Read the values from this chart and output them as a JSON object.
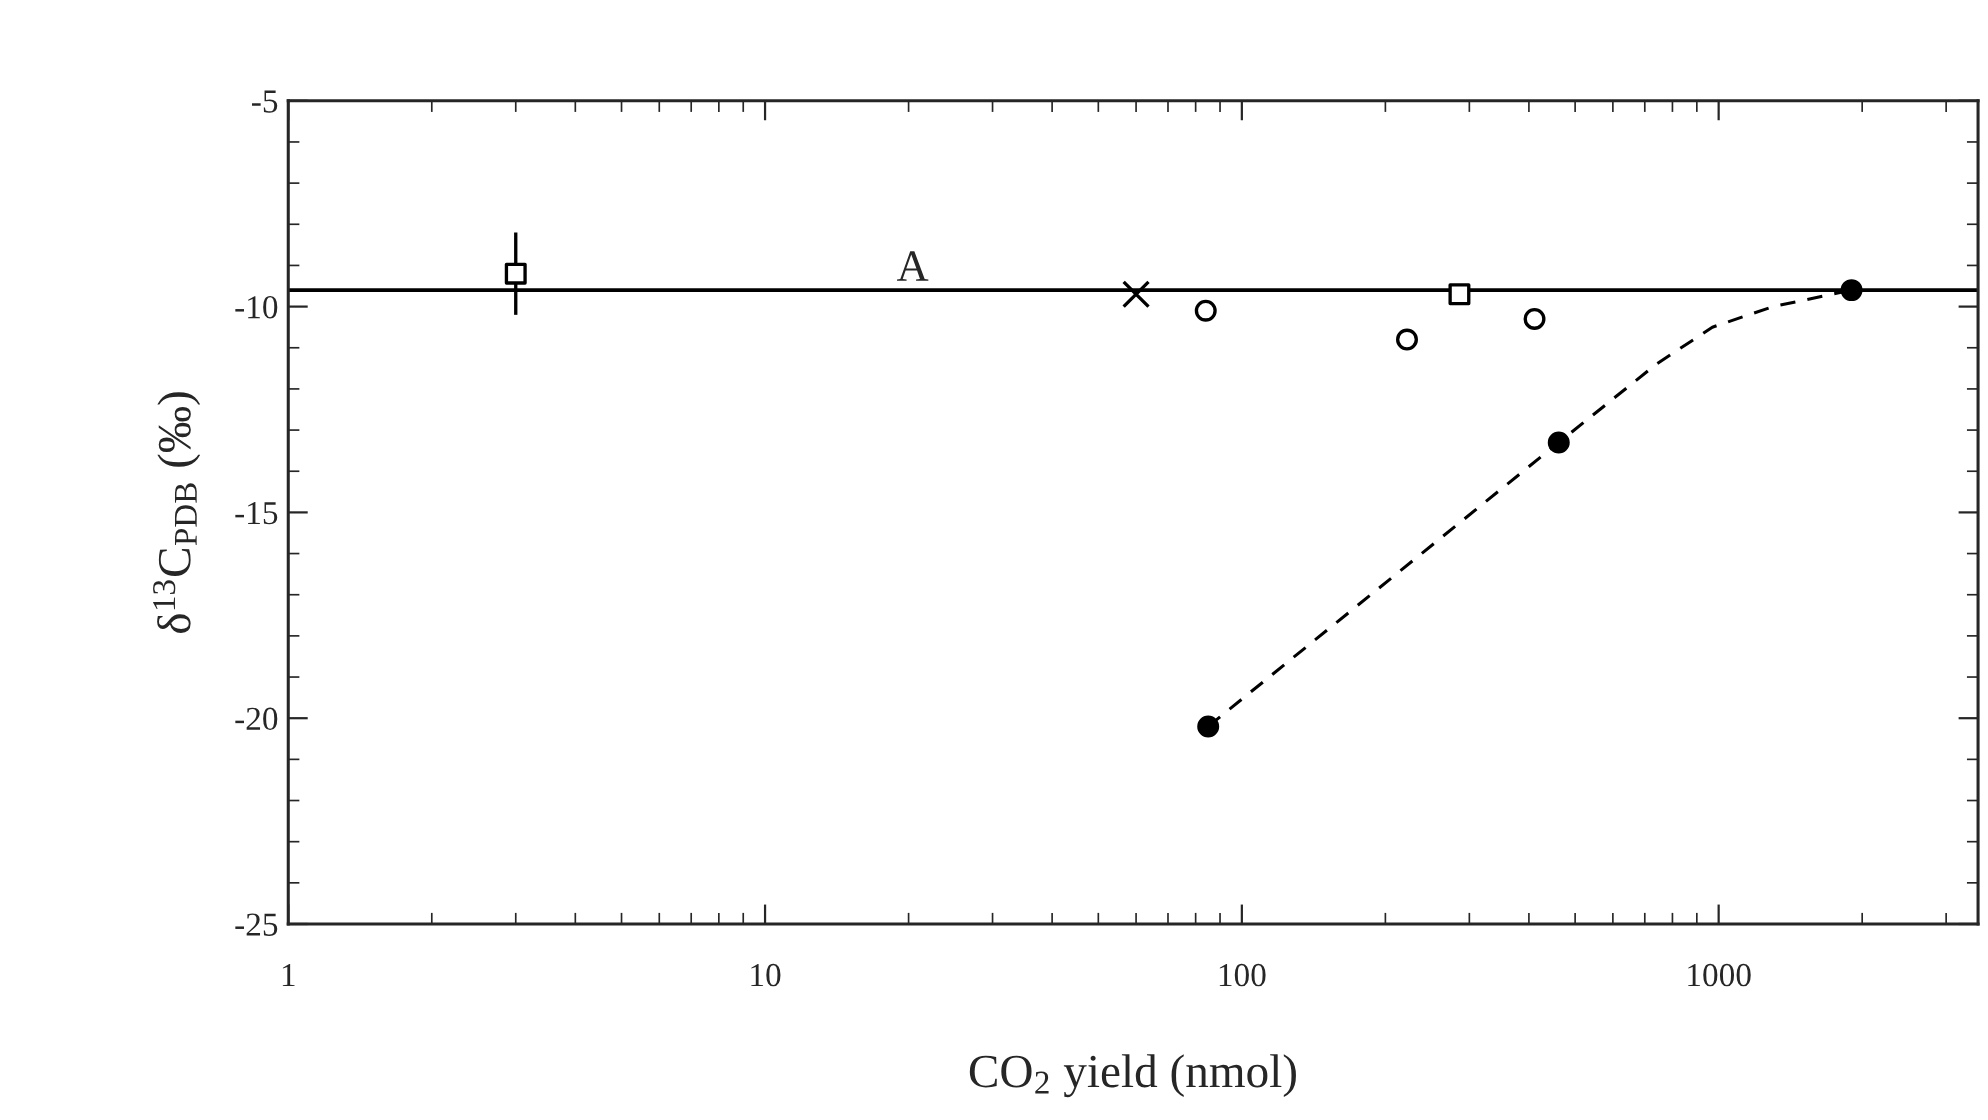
{
  "chart_data": {
    "type": "scatter",
    "xlabel": "CO$_{2}$ yield (nmol)",
    "ylabel": "δ$^{13}$C$_{PDB}$ (‰)",
    "log": "x",
    "xlim": [
      1,
      3500
    ],
    "xticks": [
      1,
      10,
      100,
      1000
    ],
    "ylim": [
      -25,
      -5
    ],
    "yticks": [
      -5,
      -10,
      -15,
      -20,
      -25
    ],
    "grid": false,
    "legend": false,
    "ref_lines": [
      {
        "axis": "y",
        "value": -9.6,
        "label": "A",
        "color": "#000000",
        "line_style": "solid"
      }
    ],
    "series": [
      {
        "marker": "square",
        "color": "#ffffff",
        "x": [
          3,
          286
        ],
        "values": [
          -9.2,
          -9.7
        ],
        "errors": [
          1.0,
          null
        ]
      },
      {
        "marker": "cross",
        "color": "#000000",
        "x": [
          60
        ],
        "values": [
          -9.7
        ]
      },
      {
        "marker": "circle",
        "color": "#ffffff",
        "x": [
          84,
          222,
          411
        ],
        "values": [
          -10.1,
          -10.8,
          -10.3
        ]
      },
      {
        "type": "line",
        "marker": "none",
        "line_style": "dashed",
        "color": "#000000",
        "x": [
          85,
          462,
          740,
          970,
          1300,
          1900
        ],
        "values": [
          -20.2,
          -13.3,
          -11.4,
          -10.5,
          -10.0,
          -9.6
        ]
      },
      {
        "marker": "circle",
        "color": "#000000",
        "x": [
          85,
          462,
          1900
        ],
        "values": [
          -20.2,
          -13.3,
          -9.6
        ]
      }
    ]
  }
}
